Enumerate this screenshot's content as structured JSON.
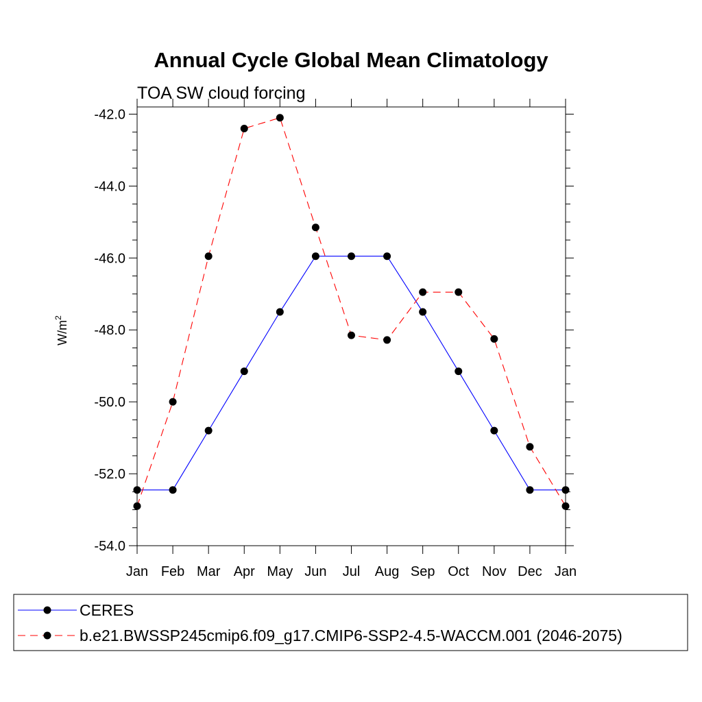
{
  "chart_data": {
    "type": "line",
    "title": "Annual Cycle Global Mean Climatology",
    "subtitle": "TOA SW cloud forcing",
    "ylabel": "W/m",
    "ylabel_superscript": "2",
    "xlabel": "",
    "categories": [
      "Jan",
      "Feb",
      "Mar",
      "Apr",
      "May",
      "Jun",
      "Jul",
      "Aug",
      "Sep",
      "Oct",
      "Nov",
      "Dec",
      "Jan"
    ],
    "ylim": [
      -54.0,
      -41.8
    ],
    "yticks": [
      "-42.0",
      "-44.0",
      "-46.0",
      "-48.0",
      "-50.0",
      "-52.0",
      "-54.0"
    ],
    "grid": false,
    "legend_position": "bottom",
    "series": [
      {
        "name": "CERES",
        "color": "#0000ff",
        "style": "solid",
        "marker": "filled-circle",
        "values": [
          -52.45,
          -52.45,
          -50.8,
          -49.15,
          -47.5,
          -45.95,
          -45.95,
          -45.95,
          -47.5,
          -49.15,
          -50.8,
          -52.45,
          -52.45
        ]
      },
      {
        "name": "b.e21.BWSSP245cmip6.f09_g17.CMIP6-SSP2-4.5-WACCM.001 (2046-2075)",
        "color": "#ff0000",
        "style": "dashed",
        "marker": "filled-circle",
        "values": [
          -52.9,
          -50.0,
          -45.95,
          -42.4,
          -42.1,
          -45.15,
          -48.15,
          -48.28,
          -46.95,
          -46.95,
          -48.25,
          -51.25,
          -52.9
        ]
      }
    ]
  }
}
